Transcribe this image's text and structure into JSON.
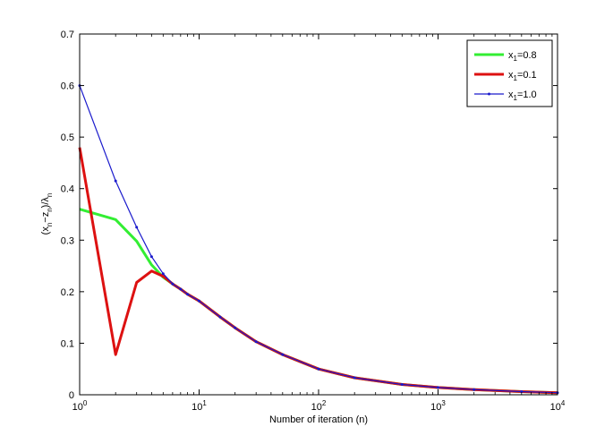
{
  "chart_data": {
    "type": "line",
    "xscale": "log",
    "xlim": [
      1,
      10000
    ],
    "ylim": [
      0,
      0.7
    ],
    "xlabel": "Number of iteration (n)",
    "ylabel": {
      "parts": [
        {
          "t": "(x",
          "sub": false
        },
        {
          "t": "n",
          "sub": true
        },
        {
          "t": "−z",
          "sub": false
        },
        {
          "t": "n",
          "sub": true
        },
        {
          "t": ")/λ",
          "sub": false
        },
        {
          "t": "n",
          "sub": true
        }
      ]
    },
    "x_ticks": [
      {
        "value": 1,
        "base": "10",
        "exp": "0"
      },
      {
        "value": 10,
        "base": "10",
        "exp": "1"
      },
      {
        "value": 100,
        "base": "10",
        "exp": "2"
      },
      {
        "value": 1000,
        "base": "10",
        "exp": "3"
      },
      {
        "value": 10000,
        "base": "10",
        "exp": "4"
      }
    ],
    "y_ticks": [
      {
        "value": 0,
        "label": "0"
      },
      {
        "value": 0.1,
        "label": "0.1"
      },
      {
        "value": 0.2,
        "label": "0.2"
      },
      {
        "value": 0.3,
        "label": "0.3"
      },
      {
        "value": 0.4,
        "label": "0.4"
      },
      {
        "value": 0.5,
        "label": "0.5"
      },
      {
        "value": 0.6,
        "label": "0.6"
      },
      {
        "value": 0.7,
        "label": "0.7"
      }
    ],
    "grid": false,
    "legend": {
      "position": "top-right",
      "entries": [
        {
          "pre": "x",
          "sub": "1",
          "post": "=0.8"
        },
        {
          "pre": "x",
          "sub": "1",
          "post": "=0.1"
        },
        {
          "pre": "x",
          "sub": "1",
          "post": "=1.0"
        }
      ]
    },
    "series": [
      {
        "color": "#33ee33",
        "line_width": "thick",
        "markers": false,
        "x": [
          1,
          2,
          3,
          4,
          5,
          6,
          7,
          8,
          10,
          15,
          20,
          30,
          50,
          100,
          200,
          500,
          1000,
          2000,
          5000,
          10000
        ],
        "y": [
          0.36,
          0.34,
          0.298,
          0.252,
          0.228,
          0.215,
          0.205,
          0.195,
          0.182,
          0.151,
          0.13,
          0.103,
          0.078,
          0.05,
          0.033,
          0.02,
          0.014,
          0.01,
          0.006,
          0.004
        ]
      },
      {
        "color": "#dd1111",
        "line_width": "thick",
        "markers": false,
        "x": [
          1,
          2,
          3,
          4,
          5,
          6,
          7,
          8,
          10,
          15,
          20,
          30,
          50,
          100,
          200,
          500,
          1000,
          2000,
          5000,
          10000
        ],
        "y": [
          0.48,
          0.078,
          0.218,
          0.24,
          0.23,
          0.215,
          0.205,
          0.195,
          0.182,
          0.151,
          0.13,
          0.103,
          0.078,
          0.05,
          0.033,
          0.02,
          0.014,
          0.01,
          0.006,
          0.004
        ]
      },
      {
        "color": "#1a1acc",
        "line_width": "thin",
        "markers": true,
        "x": [
          1,
          2,
          3,
          4,
          5,
          6,
          7,
          8,
          10,
          15,
          20,
          30,
          50,
          100,
          200,
          500,
          1000,
          2000,
          5000,
          10000
        ],
        "y": [
          0.6,
          0.415,
          0.325,
          0.268,
          0.235,
          0.215,
          0.205,
          0.195,
          0.182,
          0.151,
          0.13,
          0.103,
          0.078,
          0.05,
          0.033,
          0.02,
          0.014,
          0.01,
          0.006,
          0.004
        ]
      }
    ]
  }
}
